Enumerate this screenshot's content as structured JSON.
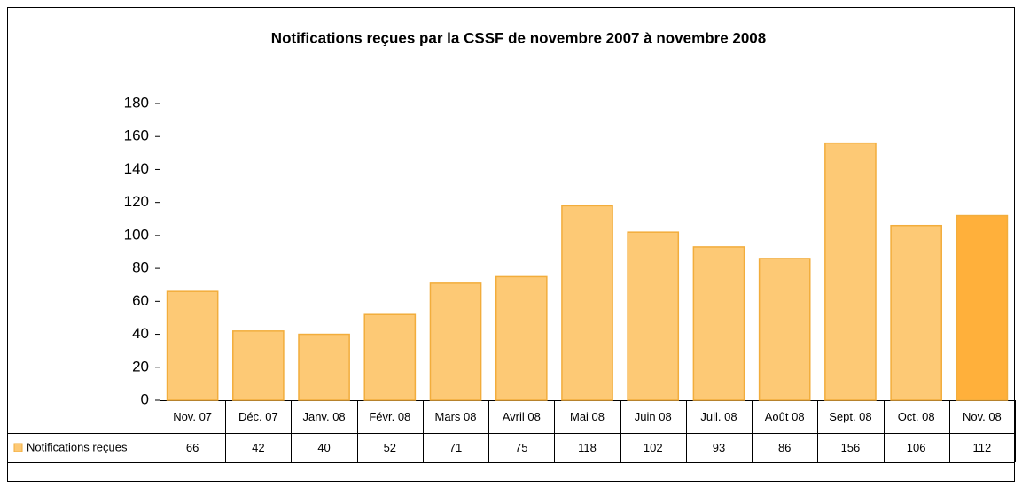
{
  "chart_data": {
    "type": "bar",
    "title": "Notifications reçues par la CSSF de novembre 2007 à novembre 2008",
    "categories": [
      "Nov. 07",
      "Déc. 07",
      "Janv. 08",
      "Févr. 08",
      "Mars 08",
      "Avril 08",
      "Mai 08",
      "Juin 08",
      "Juil. 08",
      "Août 08",
      "Sept. 08",
      "Oct. 08",
      "Nov. 08"
    ],
    "series": [
      {
        "name": "Notifications reçues",
        "color": "#fdc975",
        "values": [
          66,
          42,
          40,
          52,
          71,
          75,
          118,
          102,
          93,
          86,
          156,
          106,
          112
        ]
      }
    ],
    "bar_colors": [
      "#fdc975",
      "#fdc975",
      "#fdc975",
      "#fdc975",
      "#fdc975",
      "#fdc975",
      "#fdc975",
      "#fdc975",
      "#fdc975",
      "#fdc975",
      "#fdc975",
      "#fdc975",
      "#ffb03b"
    ],
    "ylim": [
      0,
      180
    ],
    "yticks": [
      0,
      20,
      40,
      60,
      80,
      100,
      120,
      140,
      160,
      180
    ],
    "grid": false,
    "legend": "table"
  }
}
